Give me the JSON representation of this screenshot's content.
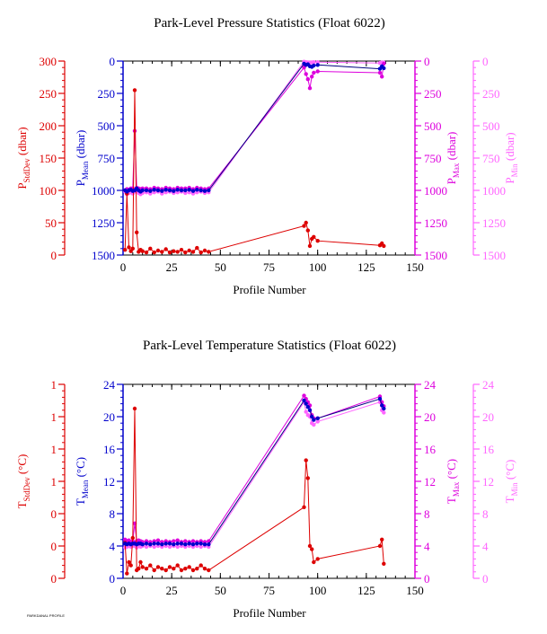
{
  "footer_text": "PARKDANAL PROFILE",
  "colors": {
    "stddev": "#dd0000",
    "mean": "#0000cc",
    "max": "#dd00dd",
    "min": "#ff66ff",
    "connector_mean": "#000080",
    "frame": "#000000"
  },
  "chart_data": [
    {
      "type": "line",
      "title": "Park-Level Pressure Statistics (Float 6022)",
      "xlabel": "Profile Number",
      "xlim": [
        0,
        150
      ],
      "xticks": [
        "0",
        "25",
        "50",
        "75",
        "100",
        "125",
        "150"
      ],
      "axes": [
        {
          "key": "stddev",
          "label": "P",
          "sub": "StdDev",
          "unit": " (dbar)",
          "side": "left",
          "ylim": [
            0,
            300
          ],
          "ticks": [
            "0",
            "50",
            "100",
            "150",
            "200",
            "250",
            "300"
          ],
          "tick_values": [
            0,
            50,
            100,
            150,
            200,
            250,
            300
          ]
        },
        {
          "key": "mean",
          "label": "P",
          "sub": "Mean",
          "unit": " (dbar)",
          "side": "left",
          "reversed": true,
          "ylim": [
            0,
            1500
          ],
          "ticks": [
            "0",
            "250",
            "500",
            "750",
            "1000",
            "1250",
            "1500"
          ],
          "tick_values": [
            0,
            250,
            500,
            750,
            1000,
            1250,
            1500
          ]
        },
        {
          "key": "max",
          "label": "P",
          "sub": "Max",
          "unit": " (dbar)",
          "side": "right",
          "reversed": true,
          "ylim": [
            0,
            1500
          ],
          "ticks": [
            "0",
            "250",
            "500",
            "750",
            "1000",
            "1250",
            "1500"
          ],
          "tick_values": [
            0,
            250,
            500,
            750,
            1000,
            1250,
            1500
          ]
        },
        {
          "key": "min",
          "label": "P",
          "sub": "Min",
          "unit": " (dbar)",
          "side": "right",
          "reversed": true,
          "ylim": [
            0,
            1500
          ],
          "ticks": [
            "0",
            "250",
            "500",
            "750",
            "1000",
            "1250",
            "1500"
          ],
          "tick_values": [
            0,
            250,
            500,
            750,
            1000,
            1250,
            1500
          ]
        }
      ],
      "series": [
        {
          "key": "stddev",
          "x": [
            1,
            2,
            3,
            4,
            5,
            6,
            7,
            8,
            9,
            10,
            12,
            14,
            16,
            18,
            20,
            22,
            24,
            26,
            28,
            30,
            32,
            34,
            36,
            38,
            40,
            42,
            44,
            93,
            94,
            95,
            96,
            97,
            98,
            100,
            132,
            133,
            134
          ],
          "y": [
            8,
            95,
            12,
            6,
            10,
            255,
            35,
            5,
            8,
            6,
            4,
            10,
            4,
            7,
            5,
            9,
            4,
            6,
            5,
            8,
            4,
            7,
            5,
            11,
            4,
            7,
            5,
            45,
            50,
            38,
            14,
            25,
            28,
            22,
            15,
            18,
            14
          ]
        },
        {
          "key": "mean",
          "x": [
            1,
            2,
            3,
            4,
            5,
            6,
            7,
            8,
            9,
            10,
            12,
            14,
            16,
            18,
            20,
            22,
            24,
            26,
            28,
            30,
            32,
            34,
            36,
            38,
            40,
            42,
            44,
            93,
            94,
            95,
            96,
            97,
            98,
            100,
            132,
            133,
            134
          ],
          "y": [
            1000,
            1010,
            1000,
            995,
            1005,
            1000,
            985,
            1000,
            1010,
            1000,
            1000,
            1005,
            995,
            1000,
            1005,
            995,
            1000,
            1005,
            995,
            1000,
            1000,
            995,
            1005,
            995,
            1000,
            1005,
            1000,
            20,
            30,
            25,
            40,
            45,
            35,
            30,
            60,
            40,
            55
          ]
        },
        {
          "key": "max",
          "x": [
            1,
            2,
            3,
            4,
            5,
            6,
            7,
            8,
            9,
            10,
            12,
            14,
            16,
            18,
            20,
            22,
            24,
            26,
            28,
            30,
            32,
            34,
            36,
            38,
            40,
            42,
            44,
            93,
            94,
            95,
            96,
            97,
            98,
            100,
            132,
            133,
            134
          ],
          "y": [
            1000,
            990,
            995,
            985,
            985,
            540,
            980,
            985,
            990,
            985,
            985,
            990,
            980,
            985,
            990,
            980,
            985,
            990,
            980,
            985,
            985,
            980,
            990,
            980,
            985,
            990,
            985,
            50,
            100,
            140,
            210,
            120,
            90,
            80,
            90,
            120,
            20
          ]
        },
        {
          "key": "min",
          "x": [
            1,
            2,
            3,
            4,
            5,
            6,
            7,
            8,
            9,
            10,
            12,
            14,
            16,
            18,
            20,
            22,
            24,
            26,
            28,
            30,
            32,
            34,
            36,
            38,
            40,
            42,
            44,
            93,
            94,
            95,
            96,
            97,
            98,
            100,
            132,
            133,
            134
          ],
          "y": [
            1010,
            1030,
            1020,
            1015,
            1025,
            1010,
            1005,
            1020,
            1030,
            1020,
            1015,
            1025,
            1015,
            1010,
            1025,
            1015,
            1010,
            1020,
            1015,
            1010,
            1020,
            1015,
            1025,
            1015,
            1010,
            1020,
            1015,
            5,
            8,
            10,
            12,
            10,
            8,
            8,
            15,
            10,
            12
          ]
        }
      ]
    },
    {
      "type": "line",
      "title": "Park-Level Temperature Statistics (Float 6022)",
      "xlabel": "Profile Number",
      "xlim": [
        0,
        150
      ],
      "xticks": [
        "0",
        "25",
        "50",
        "75",
        "100",
        "125",
        "150"
      ],
      "axes": [
        {
          "key": "stddev",
          "label": "T",
          "sub": "StdDev",
          "unit": " (°C)",
          "side": "left",
          "ylim": [
            0,
            1.2
          ],
          "ticks": [
            "0",
            "0",
            "0",
            "1",
            "1",
            "1",
            "1"
          ],
          "tick_values": [
            0,
            0.2,
            0.4,
            0.6,
            0.8,
            1.0,
            1.2
          ]
        },
        {
          "key": "mean",
          "label": "T",
          "sub": "Mean",
          "unit": " (°C)",
          "side": "left",
          "ylim": [
            0,
            24
          ],
          "ticks": [
            "0",
            "4",
            "8",
            "12",
            "16",
            "20",
            "24"
          ],
          "tick_values": [
            0,
            4,
            8,
            12,
            16,
            20,
            24
          ]
        },
        {
          "key": "max",
          "label": "T",
          "sub": "Max",
          "unit": " (°C)",
          "side": "right",
          "ylim": [
            0,
            24
          ],
          "ticks": [
            "0",
            "4",
            "8",
            "12",
            "16",
            "20",
            "24"
          ],
          "tick_values": [
            0,
            4,
            8,
            12,
            16,
            20,
            24
          ]
        },
        {
          "key": "min",
          "label": "T",
          "sub": "Min",
          "unit": " (°C)",
          "side": "right",
          "ylim": [
            0,
            24
          ],
          "ticks": [
            "0",
            "4",
            "8",
            "12",
            "16",
            "20",
            "24"
          ],
          "tick_values": [
            0,
            4,
            8,
            12,
            16,
            20,
            24
          ]
        }
      ],
      "series": [
        {
          "key": "stddev",
          "x": [
            1,
            2,
            3,
            4,
            5,
            6,
            7,
            8,
            9,
            10,
            12,
            14,
            16,
            18,
            20,
            22,
            24,
            26,
            28,
            30,
            32,
            34,
            36,
            38,
            40,
            42,
            44,
            93,
            94,
            95,
            96,
            97,
            98,
            100,
            132,
            133,
            134
          ],
          "y": [
            0.22,
            0.03,
            0.1,
            0.08,
            0.25,
            1.05,
            0.05,
            0.06,
            0.1,
            0.07,
            0.06,
            0.08,
            0.05,
            0.07,
            0.06,
            0.05,
            0.07,
            0.06,
            0.08,
            0.05,
            0.06,
            0.07,
            0.05,
            0.06,
            0.08,
            0.06,
            0.05,
            0.44,
            0.73,
            0.62,
            0.2,
            0.18,
            0.1,
            0.12,
            0.2,
            0.24,
            0.09
          ]
        },
        {
          "key": "mean",
          "x": [
            1,
            2,
            3,
            4,
            5,
            6,
            7,
            8,
            9,
            10,
            12,
            14,
            16,
            18,
            20,
            22,
            24,
            26,
            28,
            30,
            32,
            34,
            36,
            38,
            40,
            42,
            44,
            93,
            94,
            95,
            96,
            97,
            98,
            100,
            132,
            133,
            134
          ],
          "y": [
            4.3,
            4.2,
            4.3,
            4.2,
            4.3,
            4.3,
            4.2,
            4.3,
            4.3,
            4.2,
            4.3,
            4.2,
            4.3,
            4.3,
            4.2,
            4.3,
            4.3,
            4.2,
            4.3,
            4.3,
            4.2,
            4.3,
            4.2,
            4.3,
            4.3,
            4.2,
            4.2,
            22.0,
            21.6,
            21.2,
            20.8,
            20.0,
            19.6,
            19.8,
            22.2,
            21.4,
            21.0
          ]
        },
        {
          "key": "max",
          "x": [
            1,
            2,
            3,
            4,
            5,
            6,
            7,
            8,
            9,
            10,
            12,
            14,
            16,
            18,
            20,
            22,
            24,
            26,
            28,
            30,
            32,
            34,
            36,
            38,
            40,
            42,
            44,
            93,
            94,
            95,
            96,
            97,
            98,
            100,
            132,
            133,
            134
          ],
          "y": [
            4.8,
            4.6,
            4.7,
            4.5,
            4.6,
            6.8,
            4.6,
            4.7,
            4.6,
            4.5,
            4.6,
            4.5,
            4.6,
            4.7,
            4.5,
            4.6,
            4.5,
            4.6,
            4.7,
            4.5,
            4.6,
            4.5,
            4.6,
            4.5,
            4.6,
            4.5,
            4.6,
            22.6,
            22.2,
            21.8,
            21.4,
            20.2,
            19.8,
            19.8,
            22.5,
            21.8,
            21.3
          ]
        },
        {
          "key": "min",
          "x": [
            1,
            2,
            3,
            4,
            5,
            6,
            7,
            8,
            9,
            10,
            12,
            14,
            16,
            18,
            20,
            22,
            24,
            26,
            28,
            30,
            32,
            34,
            36,
            38,
            40,
            42,
            44,
            93,
            94,
            95,
            96,
            97,
            98,
            100,
            132,
            133,
            134
          ],
          "y": [
            3.8,
            3.9,
            4.0,
            3.9,
            4.0,
            4.0,
            3.8,
            4.0,
            3.9,
            4.0,
            3.9,
            4.0,
            3.9,
            4.0,
            3.9,
            4.0,
            3.9,
            4.0,
            3.9,
            4.0,
            3.9,
            4.0,
            3.9,
            4.0,
            3.9,
            4.0,
            3.9,
            21.8,
            20.6,
            20.2,
            20.0,
            19.2,
            19.0,
            19.4,
            21.8,
            20.8,
            20.5
          ]
        }
      ]
    }
  ]
}
